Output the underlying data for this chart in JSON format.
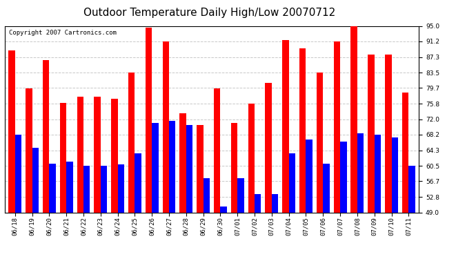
{
  "title": "Outdoor Temperature Daily High/Low 20070712",
  "copyright": "Copyright 2007 Cartronics.com",
  "dates": [
    "06/18",
    "06/19",
    "06/20",
    "06/21",
    "06/22",
    "06/23",
    "06/24",
    "06/25",
    "06/26",
    "06/27",
    "06/28",
    "06/29",
    "06/30",
    "07/01",
    "07/02",
    "07/03",
    "07/04",
    "07/05",
    "07/06",
    "07/07",
    "07/08",
    "07/09",
    "07/10",
    "07/11"
  ],
  "highs": [
    89.0,
    79.5,
    86.5,
    76.0,
    77.5,
    77.5,
    77.0,
    83.5,
    94.5,
    91.2,
    73.5,
    70.5,
    79.5,
    71.0,
    75.8,
    81.0,
    91.5,
    89.5,
    83.5,
    91.2,
    95.0,
    88.0,
    88.0,
    78.5
  ],
  "lows": [
    68.2,
    65.0,
    61.0,
    61.5,
    60.5,
    60.5,
    60.8,
    63.5,
    71.0,
    71.5,
    70.5,
    57.5,
    50.5,
    57.5,
    53.5,
    53.5,
    63.5,
    67.0,
    61.0,
    66.5,
    68.5,
    68.2,
    67.5,
    60.5
  ],
  "high_color": "#ff0000",
  "low_color": "#0000ff",
  "bg_color": "#ffffff",
  "plot_bg_color": "#ffffff",
  "grid_color": "#c8c8c8",
  "yticks": [
    49.0,
    52.8,
    56.7,
    60.5,
    64.3,
    68.2,
    72.0,
    75.8,
    79.7,
    83.5,
    87.3,
    91.2,
    95.0
  ],
  "ymin": 49.0,
  "ymax": 95.0,
  "title_fontsize": 11,
  "copyright_fontsize": 6.5,
  "tick_fontsize": 6.5,
  "bar_width": 0.38
}
